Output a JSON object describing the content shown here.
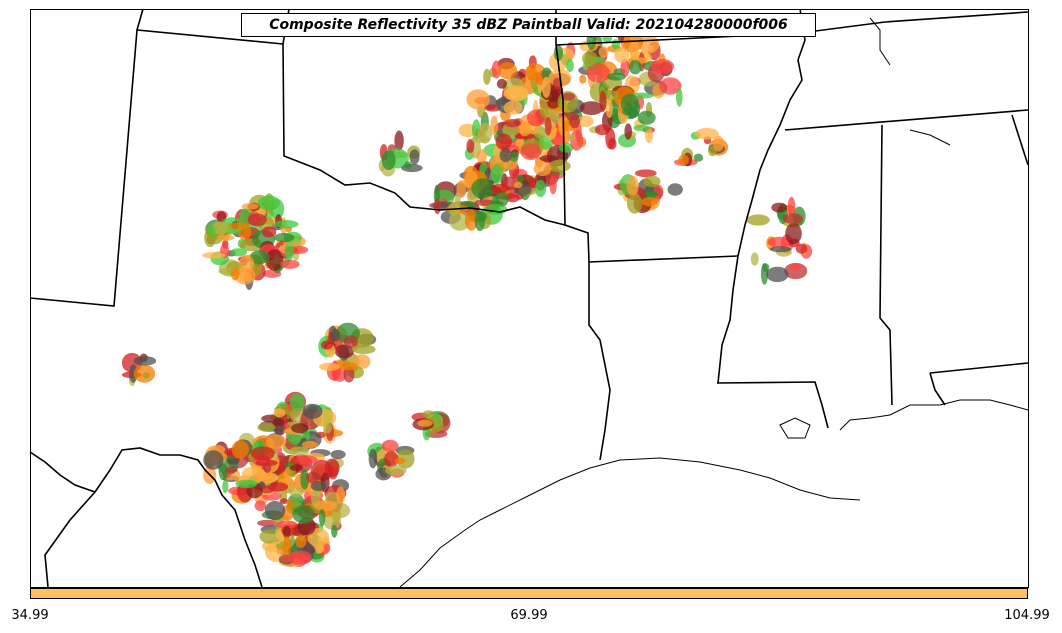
{
  "title": "Composite Reflectivity 35 dBZ Paintball Valid: 202104280000f006",
  "colorbar": {
    "color": "#FFC062",
    "ticks": [
      "34.99",
      "69.99",
      "104.99"
    ]
  },
  "member_colors": [
    "#FF4040",
    "#F47C00",
    "#FF9E33",
    "#C03030",
    "#8B1A1A",
    "#D02020",
    "#3CC83C",
    "#2E8B2E",
    "#B4B446",
    "#A0A020",
    "#505050",
    "#FFB347"
  ],
  "map_lines": {
    "color": "#000000"
  }
}
